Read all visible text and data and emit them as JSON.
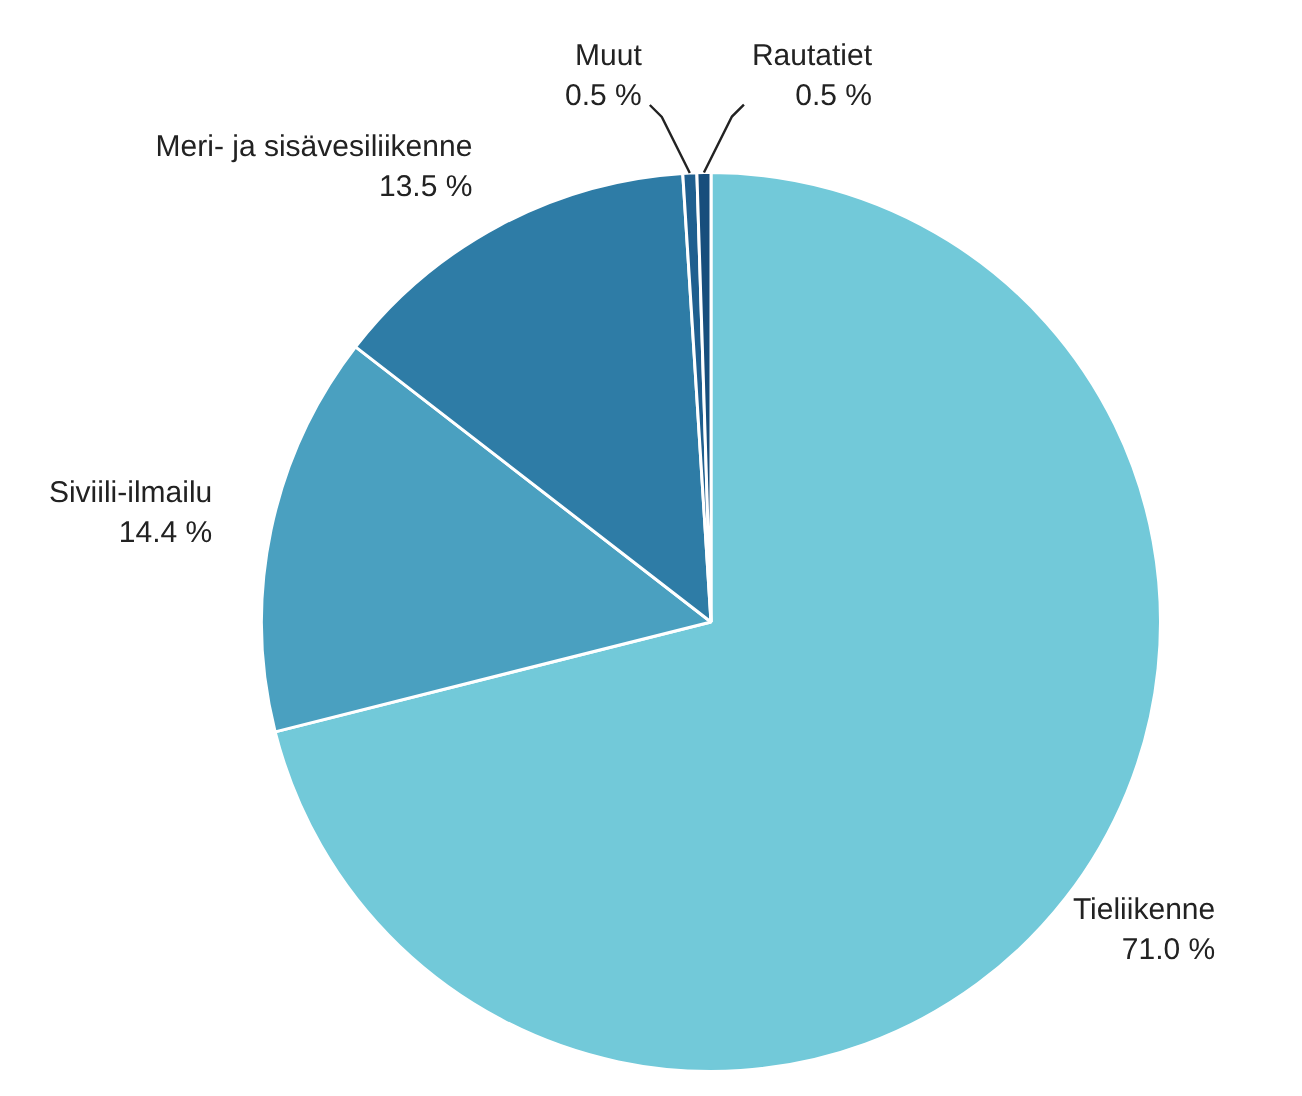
{
  "chart_data": {
    "type": "pie",
    "categories": [
      "Tieliikenne",
      "Siviili-ilmailu",
      "Meri- ja sisävesiliikenne",
      "Muut",
      "Rautatiet"
    ],
    "values": [
      71.0,
      14.4,
      13.5,
      0.5,
      0.5
    ],
    "colors": [
      "#72c9d9",
      "#4aa0c0",
      "#2e7ca6",
      "#1f5f8f",
      "#174e7c"
    ],
    "value_labels": [
      "71.0 %",
      "14.4 %",
      "13.5 %",
      "0.5 %",
      "0.5 %"
    ],
    "legend": false
  }
}
